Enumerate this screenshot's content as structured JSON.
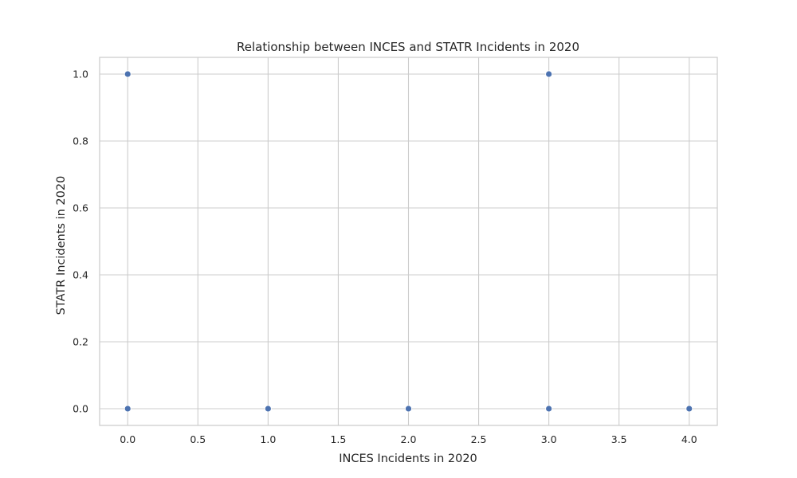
{
  "chart_data": {
    "type": "scatter",
    "title": "Relationship between INCES and STATR Incidents in 2020",
    "xlabel": "INCES Incidents in 2020",
    "ylabel": "STATR Incidents in 2020",
    "xlim": [
      -0.2,
      4.2
    ],
    "ylim": [
      -0.05,
      1.05
    ],
    "xticks": [
      0.0,
      0.5,
      1.0,
      1.5,
      2.0,
      2.5,
      3.0,
      3.5,
      4.0
    ],
    "yticks": [
      0.0,
      0.2,
      0.4,
      0.6,
      0.8,
      1.0
    ],
    "xtick_labels": [
      "0.0",
      "0.5",
      "1.0",
      "1.5",
      "2.0",
      "2.5",
      "3.0",
      "3.5",
      "4.0"
    ],
    "ytick_labels": [
      "0.0",
      "0.2",
      "0.4",
      "0.6",
      "0.8",
      "1.0"
    ],
    "grid": true,
    "points": [
      {
        "x": 0,
        "y": 1
      },
      {
        "x": 0,
        "y": 0
      },
      {
        "x": 1,
        "y": 0
      },
      {
        "x": 2,
        "y": 0
      },
      {
        "x": 3,
        "y": 1
      },
      {
        "x": 3,
        "y": 0
      },
      {
        "x": 4,
        "y": 0
      }
    ],
    "point_color": "#4c72b0",
    "point_edge_color": "#ffffff"
  }
}
